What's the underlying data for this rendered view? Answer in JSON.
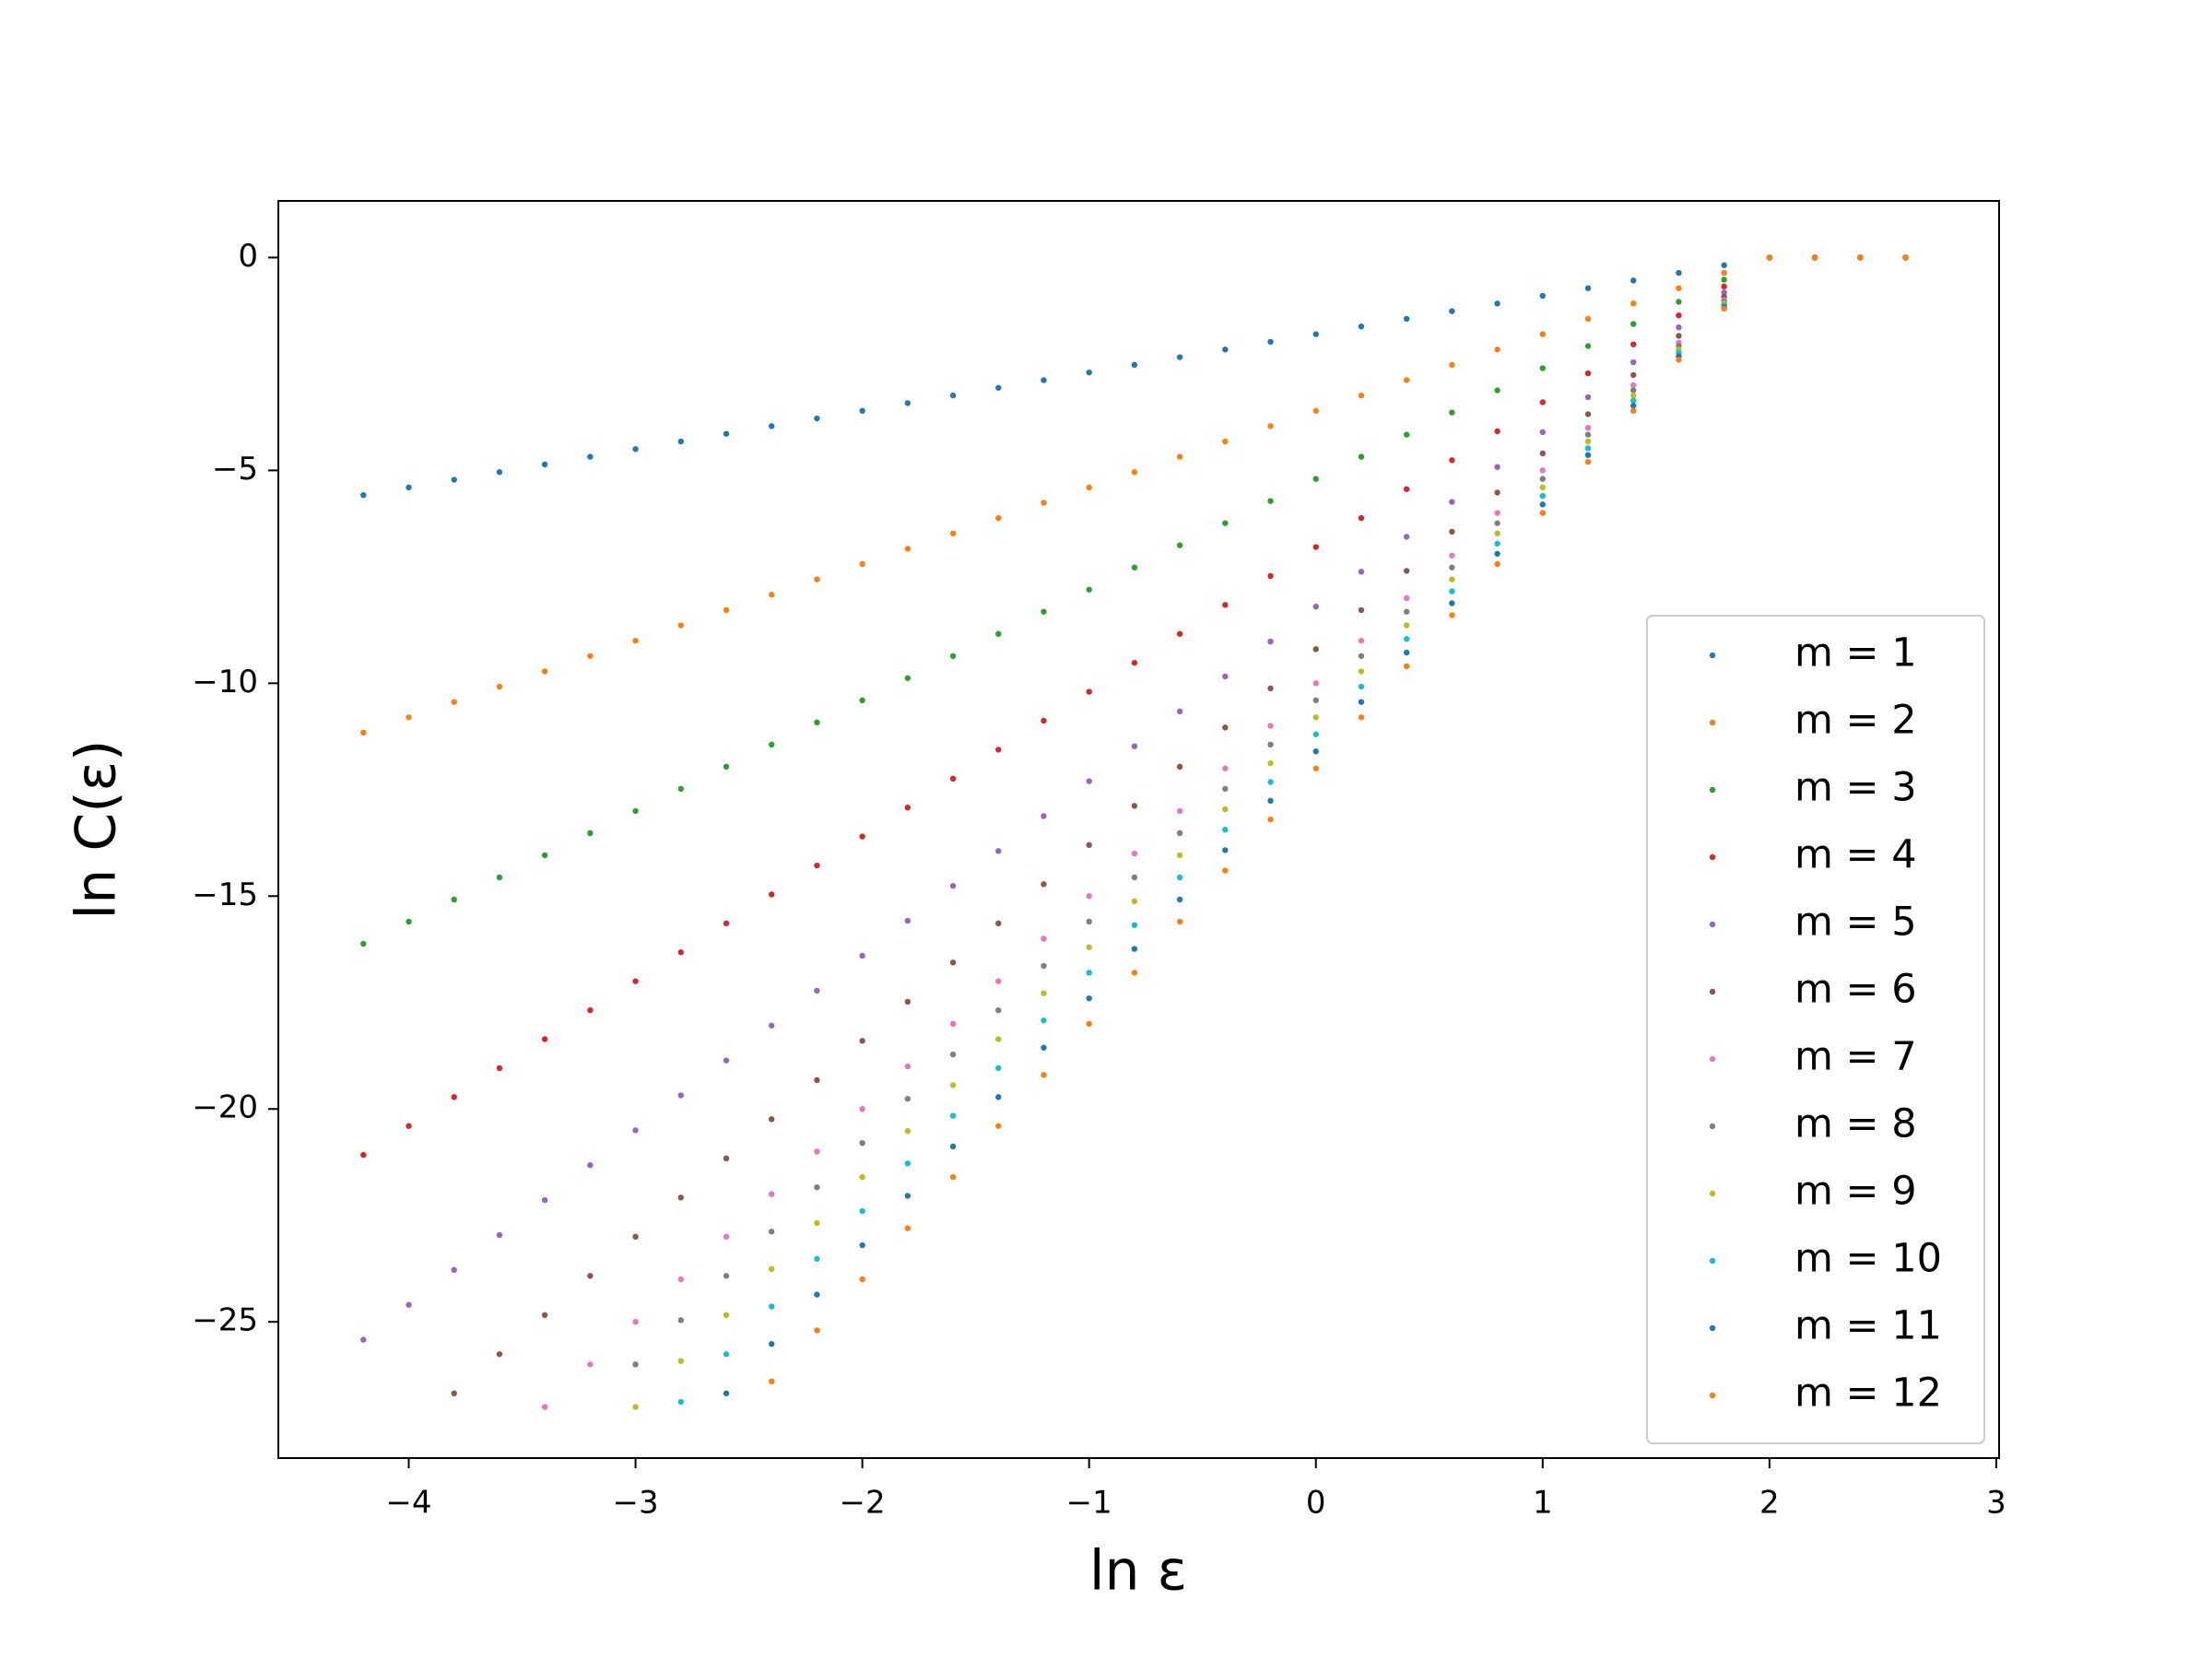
{
  "chart_data": {
    "type": "scatter",
    "xlabel": "ln ε",
    "ylabel": "ln C(ε)",
    "xlim": [
      -4.575,
      3.0125
    ],
    "ylim": [
      -28.2,
      1.33
    ],
    "xticks": [
      {
        "value": -4,
        "label": "−4"
      },
      {
        "value": -3,
        "label": "−3"
      },
      {
        "value": -2,
        "label": "−2"
      },
      {
        "value": -1,
        "label": "−1"
      },
      0,
      1,
      2,
      3
    ],
    "yticks": [
      0,
      {
        "value": -5,
        "label": "−5"
      },
      {
        "value": -10,
        "label": "−10"
      },
      {
        "value": -15,
        "label": "−15"
      },
      {
        "value": -20,
        "label": "−20"
      },
      {
        "value": -25,
        "label": "−25"
      }
    ],
    "grid": false,
    "legend": "lower right",
    "x": [
      -4.2,
      -4,
      -3.8,
      -3.6,
      -3.4,
      -3.2,
      -3,
      -2.8,
      -2.6,
      -2.4,
      -2.2,
      -2,
      -1.8,
      -1.6,
      -1.4,
      -1.2,
      -1,
      -0.8,
      -0.6,
      -0.4,
      -0.2,
      0,
      0.2,
      0.4,
      0.6,
      0.8,
      1,
      1.2,
      1.4,
      1.6,
      1.8,
      2,
      2.2,
      2.4,
      2.6
    ],
    "series": [
      {
        "name": "m = 1",
        "color": "#1f77b4",
        "values": [
          -5.58,
          -5.4,
          -5.22,
          -5.04,
          -4.86,
          -4.68,
          -4.5,
          -4.32,
          -4.14,
          -3.96,
          -3.78,
          -3.6,
          -3.42,
          -3.24,
          -3.06,
          -2.88,
          -2.7,
          -2.52,
          -2.34,
          -2.16,
          -1.98,
          -1.8,
          -1.62,
          -1.44,
          -1.26,
          -1.08,
          -0.9,
          -0.72,
          -0.54,
          -0.36,
          -0.18,
          0,
          0,
          0,
          0
        ]
      },
      {
        "name": "m = 2",
        "color": "#ff7f0e",
        "values": [
          -11.16,
          -10.8,
          -10.44,
          -10.08,
          -9.72,
          -9.36,
          -9,
          -8.64,
          -8.28,
          -7.92,
          -7.56,
          -7.2,
          -6.84,
          -6.48,
          -6.12,
          -5.76,
          -5.4,
          -5.04,
          -4.68,
          -4.32,
          -3.96,
          -3.6,
          -3.24,
          -2.88,
          -2.52,
          -2.16,
          -1.8,
          -1.44,
          -1.08,
          -0.72,
          -0.36,
          0,
          0,
          0,
          0
        ]
      },
      {
        "name": "m = 3",
        "color": "#2ca02c",
        "values": [
          -16.12,
          -15.6,
          -15.08,
          -14.56,
          -14.04,
          -13.52,
          -13,
          -12.48,
          -11.96,
          -11.44,
          -10.92,
          -10.4,
          -9.88,
          -9.36,
          -8.84,
          -8.32,
          -7.8,
          -7.28,
          -6.76,
          -6.24,
          -5.72,
          -5.2,
          -4.68,
          -4.16,
          -3.64,
          -3.12,
          -2.6,
          -2.08,
          -1.56,
          -1.04,
          -0.52,
          0,
          0,
          0,
          0
        ]
      },
      {
        "name": "m = 4",
        "color": "#d62728",
        "values": [
          -21.08,
          -20.4,
          -19.72,
          -19.04,
          -18.36,
          -17.68,
          -17,
          -16.32,
          -15.64,
          -14.96,
          -14.28,
          -13.6,
          -12.92,
          -12.24,
          -11.56,
          -10.88,
          -10.2,
          -9.52,
          -8.84,
          -8.16,
          -7.48,
          -6.8,
          -6.12,
          -5.44,
          -4.76,
          -4.08,
          -3.4,
          -2.72,
          -2.04,
          -1.36,
          -0.68,
          0,
          0,
          0,
          0
        ]
      },
      {
        "name": "m = 5",
        "color": "#9467bd",
        "values": [
          -25.42,
          -24.6,
          -23.78,
          -22.96,
          -22.14,
          -21.32,
          -20.5,
          -19.68,
          -18.86,
          -18.04,
          -17.22,
          -16.4,
          -15.58,
          -14.76,
          -13.94,
          -13.12,
          -12.3,
          -11.48,
          -10.66,
          -9.84,
          -9.02,
          -8.2,
          -7.38,
          -6.56,
          -5.74,
          -4.92,
          -4.1,
          -3.28,
          -2.46,
          -1.64,
          -0.82,
          0,
          0,
          0,
          0
        ]
      },
      {
        "name": "m = 6",
        "color": "#8c564b",
        "values": [
          null,
          null,
          -26.68,
          -25.76,
          -24.84,
          -23.92,
          -23,
          -22.08,
          -21.16,
          -20.24,
          -19.32,
          -18.4,
          -17.48,
          -16.56,
          -15.64,
          -14.72,
          -13.8,
          -12.88,
          -11.96,
          -11.04,
          -10.12,
          -9.2,
          -8.28,
          -7.36,
          -6.44,
          -5.52,
          -4.6,
          -3.68,
          -2.76,
          -1.84,
          -0.92,
          0,
          0,
          0,
          0
        ]
      },
      {
        "name": "m = 7",
        "color": "#e377c2",
        "values": [
          null,
          null,
          null,
          null,
          -27,
          -26,
          -25,
          -24,
          -23,
          -22,
          -21,
          -20,
          -19,
          -18,
          -17,
          -16,
          -15,
          -14,
          -13,
          -12,
          -11,
          -10,
          -9,
          -8,
          -7,
          -6,
          -5,
          -4,
          -3,
          -2,
          -1,
          0,
          0,
          0,
          0
        ]
      },
      {
        "name": "m = 8",
        "color": "#7f7f7f",
        "values": [
          null,
          null,
          null,
          null,
          null,
          null,
          -26,
          -24.96,
          -23.92,
          -22.88,
          -21.84,
          -20.8,
          -19.76,
          -18.72,
          -17.68,
          -16.64,
          -15.6,
          -14.56,
          -13.52,
          -12.48,
          -11.44,
          -10.4,
          -9.36,
          -8.32,
          -7.28,
          -6.24,
          -5.2,
          -4.16,
          -3.12,
          -2.08,
          -1.04,
          0,
          0,
          0,
          0
        ]
      },
      {
        "name": "m = 9",
        "color": "#bcbd22",
        "values": [
          null,
          null,
          null,
          null,
          null,
          null,
          -27,
          -25.92,
          -24.84,
          -23.76,
          -22.68,
          -21.6,
          -20.52,
          -19.44,
          -18.36,
          -17.28,
          -16.2,
          -15.12,
          -14.04,
          -12.96,
          -11.88,
          -10.8,
          -9.72,
          -8.64,
          -7.56,
          -6.48,
          -5.4,
          -4.32,
          -3.24,
          -2.16,
          -1.08,
          0,
          0,
          0,
          0
        ]
      },
      {
        "name": "m = 10",
        "color": "#17becf",
        "values": [
          null,
          null,
          null,
          null,
          null,
          null,
          null,
          -26.88,
          -25.76,
          -24.64,
          -23.52,
          -22.4,
          -21.28,
          -20.16,
          -19.04,
          -17.92,
          -16.8,
          -15.68,
          -14.56,
          -13.44,
          -12.32,
          -11.2,
          -10.08,
          -8.96,
          -7.84,
          -6.72,
          -5.6,
          -4.48,
          -3.36,
          -2.24,
          -1.12,
          0,
          0,
          0,
          0
        ]
      },
      {
        "name": "m = 11",
        "color": "#1f77b4",
        "values": [
          null,
          null,
          null,
          null,
          null,
          null,
          null,
          null,
          -26.68,
          -25.52,
          -24.36,
          -23.2,
          -22.04,
          -20.88,
          -19.72,
          -18.56,
          -17.4,
          -16.24,
          -15.08,
          -13.92,
          -12.76,
          -11.6,
          -10.44,
          -9.28,
          -8.12,
          -6.96,
          -5.8,
          -4.64,
          -3.48,
          -2.32,
          -1.16,
          0,
          0,
          0,
          0
        ]
      },
      {
        "name": "m = 12",
        "color": "#ff7f0e",
        "values": [
          null,
          null,
          null,
          null,
          null,
          null,
          null,
          null,
          null,
          -26.4,
          -25.2,
          -24,
          -22.8,
          -21.6,
          -20.4,
          -19.2,
          -18,
          -16.8,
          -15.6,
          -14.4,
          -13.2,
          -12,
          -10.8,
          -9.6,
          -8.4,
          -7.2,
          -6,
          -4.8,
          -3.6,
          -2.4,
          -1.2,
          0,
          0,
          0,
          0
        ]
      }
    ]
  }
}
